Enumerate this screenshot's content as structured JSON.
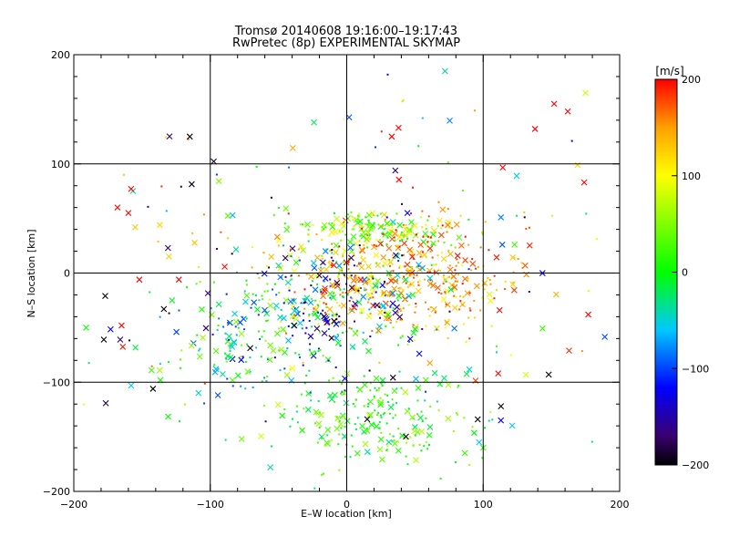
{
  "chart_data": {
    "type": "scatter",
    "title_line1": "Tromsø 20140608 19:16:00–19:17:43",
    "title_line2": "RwPretec (8p) EXPERIMENTAL SKYMAP",
    "xlabel": "E–W location [km]",
    "ylabel": "N–S location [km]",
    "xlim": [
      -200,
      200
    ],
    "ylim": [
      -200,
      200
    ],
    "xticks": [
      -200,
      -100,
      0,
      100,
      200
    ],
    "yticks": [
      -200,
      -100,
      0,
      100,
      200
    ],
    "xtick_labels": [
      "−200",
      "−100",
      "0",
      "100",
      "200"
    ],
    "ytick_labels": [
      "−200",
      "−100",
      "0",
      "100",
      "200"
    ],
    "grid": true,
    "marker_types": [
      "cross",
      "dot"
    ],
    "color_scale": {
      "label": "[m/s]",
      "min": -200,
      "max": 200,
      "ticks": [
        200,
        100,
        0,
        -100,
        -200
      ],
      "tick_labels": [
        "200",
        "100",
        "0",
        "−100",
        "−200"
      ],
      "stops": [
        {
          "value": -200,
          "color": "#000000"
        },
        {
          "value": -170,
          "color": "#3a0070"
        },
        {
          "value": -120,
          "color": "#0000ff"
        },
        {
          "value": -60,
          "color": "#00c8ff"
        },
        {
          "value": 0,
          "color": "#00ff00"
        },
        {
          "value": 100,
          "color": "#ffff00"
        },
        {
          "value": 150,
          "color": "#ffa000"
        },
        {
          "value": 200,
          "color": "#ff0000"
        }
      ]
    },
    "clusters": [
      {
        "cx": 20,
        "cy": 40,
        "sx": 28,
        "sy": 8,
        "count": 160,
        "v": [
          -10,
          120
        ]
      },
      {
        "cx": 30,
        "cy": -10,
        "sx": 45,
        "sy": 22,
        "count": 320,
        "v": [
          80,
          200
        ]
      },
      {
        "cx": -10,
        "cy": -30,
        "sx": 40,
        "sy": 30,
        "count": 260,
        "v": [
          -200,
          60
        ]
      },
      {
        "cx": 20,
        "cy": -130,
        "sx": 35,
        "sy": 25,
        "count": 220,
        "v": [
          -40,
          80
        ]
      },
      {
        "cx": -70,
        "cy": -60,
        "sx": 30,
        "sy": 25,
        "count": 110,
        "v": [
          -120,
          60
        ]
      },
      {
        "cx": 60,
        "cy": 10,
        "sx": 40,
        "sy": 25,
        "count": 120,
        "v": [
          120,
          200
        ]
      },
      {
        "cx": 0,
        "cy": 0,
        "sx": 110,
        "sy": 90,
        "count": 170,
        "v": [
          -200,
          200
        ]
      }
    ],
    "points": [
      {
        "x": -115,
        "y": 125,
        "v": -200,
        "m": "cross"
      },
      {
        "x": -24,
        "y": 138,
        "v": -20,
        "m": "cross"
      },
      {
        "x": 72,
        "y": 185,
        "v": -40,
        "m": "cross"
      },
      {
        "x": 175,
        "y": 165,
        "v": 80,
        "m": "cross"
      },
      {
        "x": 152,
        "y": 155,
        "v": 200,
        "m": "cross"
      },
      {
        "x": 162,
        "y": 148,
        "v": 200,
        "m": "cross"
      },
      {
        "x": 138,
        "y": 132,
        "v": 200,
        "m": "cross"
      },
      {
        "x": 174,
        "y": 83,
        "v": 200,
        "m": "cross"
      },
      {
        "x": 38,
        "y": 133,
        "v": 200,
        "m": "cross"
      },
      {
        "x": 33,
        "y": 125,
        "v": 200,
        "m": "cross"
      },
      {
        "x": -158,
        "y": 77,
        "v": 200,
        "m": "cross"
      },
      {
        "x": -160,
        "y": 55,
        "v": 200,
        "m": "cross"
      },
      {
        "x": -168,
        "y": 60,
        "v": 200,
        "m": "cross"
      },
      {
        "x": -137,
        "y": 44,
        "v": 120,
        "m": "cross"
      },
      {
        "x": -155,
        "y": 42,
        "v": 130,
        "m": "cross"
      },
      {
        "x": -131,
        "y": 23,
        "v": -160,
        "m": "cross"
      },
      {
        "x": -152,
        "y": -6,
        "v": 200,
        "m": "cross"
      },
      {
        "x": -123,
        "y": -6,
        "v": 200,
        "m": "cross"
      },
      {
        "x": -134,
        "y": -33,
        "v": -200,
        "m": "cross"
      },
      {
        "x": -165,
        "y": -48,
        "v": 200,
        "m": "cross"
      },
      {
        "x": -191,
        "y": -50,
        "v": 0,
        "m": "cross"
      },
      {
        "x": -178,
        "y": -61,
        "v": -200,
        "m": "cross"
      },
      {
        "x": -166,
        "y": -61,
        "v": -160,
        "m": "cross"
      },
      {
        "x": -143,
        "y": -89,
        "v": 20,
        "m": "cross"
      },
      {
        "x": -137,
        "y": -89,
        "v": 60,
        "m": "cross"
      },
      {
        "x": -142,
        "y": -106,
        "v": -200,
        "m": "cross"
      },
      {
        "x": -158,
        "y": -103,
        "v": -60,
        "m": "cross"
      },
      {
        "x": 113,
        "y": 51,
        "v": -80,
        "m": "cross"
      },
      {
        "x": 114,
        "y": 26,
        "v": -100,
        "m": "cross"
      },
      {
        "x": 123,
        "y": 26,
        "v": 20,
        "m": "cross"
      },
      {
        "x": 112,
        "y": -34,
        "v": 200,
        "m": "cross"
      },
      {
        "x": 148,
        "y": -93,
        "v": -200,
        "m": "cross"
      },
      {
        "x": 111,
        "y": -92,
        "v": 200,
        "m": "cross"
      },
      {
        "x": 113,
        "y": -122,
        "v": -200,
        "m": "cross"
      },
      {
        "x": 113,
        "y": -135,
        "v": -120,
        "m": "cross"
      },
      {
        "x": 96,
        "y": -134,
        "v": -200,
        "m": "cross"
      },
      {
        "x": 97,
        "y": -155,
        "v": -60,
        "m": "cross"
      },
      {
        "x": 100,
        "y": -160,
        "v": 20,
        "m": "cross"
      },
      {
        "x": 177,
        "y": -38,
        "v": 200,
        "m": "cross"
      },
      {
        "x": -56,
        "y": -178,
        "v": -40,
        "m": "cross"
      }
    ]
  }
}
